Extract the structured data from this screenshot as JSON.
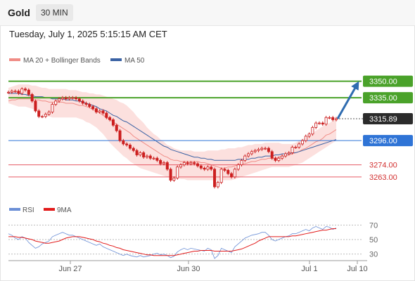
{
  "header": {
    "title": "Gold",
    "timeframe": "30 MIN"
  },
  "datetime": "Tuesday, July 1, 2025 5:15:15 AM CET",
  "colors": {
    "candle": "#cc1f1f",
    "ma20": "#f08c86",
    "bollinger_fill": "#fbd6d3",
    "ma50": "#3a62a4",
    "resistance": "#4aa22a",
    "pivot": "#2f74d6",
    "support": "#e65a64",
    "arrow": "#2f6cb0",
    "rsi": "#6b8fd6",
    "rsi_ma": "#e21b1b"
  },
  "chart_data": [
    {
      "type": "candlestick",
      "legend": [
        {
          "label": "MA 20 + Bollinger Bands",
          "color": "#f08c86"
        },
        {
          "label": "MA 50",
          "color": "#3a62a4"
        }
      ],
      "ylim": [
        3245,
        3360
      ],
      "x_ticks": [
        "Jun 27",
        "Jun 30",
        "Jul 1",
        "Jul 10"
      ],
      "levels": [
        {
          "value": 3350.0,
          "label": "3350.00",
          "kind": "resistance"
        },
        {
          "value": 3335.0,
          "label": "3335.00",
          "kind": "resistance"
        },
        {
          "value": 3315.89,
          "label": "3315.89",
          "kind": "current"
        },
        {
          "value": 3296.0,
          "label": "3296.00",
          "kind": "pivot"
        },
        {
          "value": 3274.0,
          "label": "3274.00",
          "kind": "support"
        },
        {
          "value": 3263.0,
          "label": "3263.00",
          "kind": "support"
        }
      ],
      "close": [
        3340,
        3341,
        3341,
        3339,
        3343,
        3342,
        3338,
        3332,
        3323,
        3318,
        3318,
        3320,
        3322,
        3329,
        3332,
        3334,
        3335,
        3334,
        3335,
        3335,
        3334,
        3332,
        3330,
        3329,
        3327,
        3325,
        3322,
        3323,
        3321,
        3317,
        3315,
        3310,
        3305,
        3296,
        3293,
        3292,
        3289,
        3287,
        3283,
        3285,
        3281,
        3282,
        3280,
        3280,
        3278,
        3275,
        3276,
        3270,
        3260,
        3262,
        3272,
        3274,
        3276,
        3275,
        3276,
        3275,
        3273,
        3271,
        3270,
        3272,
        3270,
        3254,
        3258,
        3270,
        3269,
        3266,
        3263,
        3270,
        3274,
        3278,
        3282,
        3284,
        3286,
        3287,
        3288,
        3289,
        3289,
        3286,
        3280,
        3278,
        3280,
        3282,
        3284,
        3285,
        3290,
        3290,
        3293,
        3296,
        3300,
        3302,
        3308,
        3312,
        3312,
        3311,
        3317,
        3317,
        3315,
        3316
      ],
      "ma20": [
        3332,
        3333,
        3333,
        3334,
        3334,
        3334,
        3334,
        3334,
        3333,
        3333,
        3332,
        3332,
        3331,
        3331,
        3331,
        3331,
        3331,
        3330,
        3330,
        3330,
        3329,
        3328,
        3328,
        3327,
        3326,
        3324,
        3323,
        3321,
        3319,
        3317,
        3315,
        3313,
        3311,
        3309,
        3307,
        3305,
        3303,
        3300,
        3298,
        3296,
        3294,
        3292,
        3290,
        3288,
        3286,
        3284,
        3282,
        3281,
        3279,
        3278,
        3278,
        3277,
        3277,
        3277,
        3277,
        3277,
        3277,
        3276,
        3276,
        3275,
        3274,
        3273,
        3272,
        3271,
        3271,
        3272,
        3272,
        3273,
        3274,
        3275,
        3275,
        3276,
        3277,
        3277,
        3278,
        3279,
        3279,
        3280,
        3280,
        3280,
        3281,
        3282,
        3282,
        3283,
        3284,
        3285,
        3286,
        3288,
        3289,
        3291,
        3293,
        3295,
        3296,
        3298,
        3301,
        3302,
        3304,
        3306
      ],
      "ma50": [
        3339,
        3339,
        3339,
        3339,
        3338,
        3338,
        3337,
        3337,
        3336,
        3336,
        3336,
        3335,
        3335,
        3334,
        3334,
        3334,
        3334,
        3333,
        3333,
        3333,
        3332,
        3332,
        3331,
        3330,
        3329,
        3328,
        3327,
        3325,
        3324,
        3323,
        3321,
        3319,
        3318,
        3316,
        3314,
        3313,
        3311,
        3309,
        3307,
        3305,
        3303,
        3301,
        3299,
        3297,
        3295,
        3293,
        3291,
        3290,
        3288,
        3287,
        3286,
        3285,
        3284,
        3283,
        3282,
        3281,
        3281,
        3280,
        3280,
        3279,
        3279,
        3278,
        3278,
        3278,
        3278,
        3278,
        3278,
        3278,
        3279,
        3279,
        3279,
        3279,
        3280,
        3280,
        3281,
        3281,
        3282,
        3282,
        3282,
        3283,
        3283,
        3284,
        3284,
        3284,
        3285,
        3285,
        3286,
        3287,
        3288,
        3289,
        3290,
        3291,
        3292,
        3293,
        3294,
        3295,
        3296,
        3297
      ],
      "bb_upper": [
        3344,
        3345,
        3346,
        3347,
        3347,
        3347,
        3347,
        3346,
        3346,
        3345,
        3344,
        3344,
        3343,
        3343,
        3343,
        3343,
        3343,
        3343,
        3342,
        3342,
        3342,
        3341,
        3340,
        3340,
        3339,
        3339,
        3338,
        3338,
        3337,
        3336,
        3335,
        3334,
        3333,
        3331,
        3330,
        3328,
        3325,
        3322,
        3318,
        3315,
        3312,
        3308,
        3305,
        3302,
        3300,
        3297,
        3295,
        3292,
        3291,
        3289,
        3288,
        3287,
        3287,
        3287,
        3287,
        3286,
        3286,
        3286,
        3286,
        3287,
        3287,
        3287,
        3287,
        3288,
        3288,
        3289,
        3289,
        3289,
        3290,
        3290,
        3291,
        3292,
        3292,
        3293,
        3293,
        3293,
        3294,
        3294,
        3294,
        3294,
        3294,
        3293,
        3293,
        3293,
        3293,
        3294,
        3296,
        3297,
        3299,
        3301,
        3303,
        3305,
        3307,
        3309,
        3311,
        3312,
        3314,
        3315
      ],
      "bb_lower": [
        3330,
        3329,
        3328,
        3327,
        3327,
        3327,
        3326,
        3325,
        3324,
        3322,
        3320,
        3318,
        3318,
        3317,
        3317,
        3317,
        3317,
        3317,
        3317,
        3317,
        3317,
        3316,
        3315,
        3313,
        3312,
        3310,
        3308,
        3305,
        3302,
        3298,
        3294,
        3291,
        3288,
        3285,
        3282,
        3280,
        3277,
        3275,
        3273,
        3271,
        3270,
        3269,
        3268,
        3267,
        3266,
        3265,
        3264,
        3263,
        3263,
        3262,
        3262,
        3261,
        3261,
        3260,
        3260,
        3260,
        3260,
        3260,
        3260,
        3260,
        3260,
        3260,
        3260,
        3260,
        3260,
        3260,
        3260,
        3261,
        3262,
        3263,
        3264,
        3265,
        3266,
        3267,
        3268,
        3269,
        3270,
        3271,
        3272,
        3272,
        3272,
        3272,
        3272,
        3272,
        3273,
        3274,
        3275,
        3276,
        3278,
        3280,
        3282,
        3284,
        3286,
        3288,
        3290,
        3292,
        3294,
        3296
      ]
    },
    {
      "type": "line",
      "legend": [
        {
          "label": "RSI",
          "color": "#6b8fd6"
        },
        {
          "label": "9MA",
          "color": "#e21b1b"
        }
      ],
      "ylim": [
        20,
        80
      ],
      "y_ticks": [
        "70",
        "50",
        "30"
      ],
      "rsi": [
        58,
        56,
        52,
        50,
        54,
        52,
        46,
        42,
        38,
        40,
        44,
        46,
        48,
        54,
        56,
        58,
        60,
        58,
        56,
        56,
        54,
        52,
        50,
        48,
        46,
        44,
        42,
        44,
        40,
        38,
        36,
        34,
        32,
        30,
        28,
        30,
        28,
        27,
        26,
        28,
        26,
        27,
        28,
        30,
        31,
        29,
        30,
        28,
        25,
        27,
        33,
        36,
        38,
        36,
        38,
        37,
        36,
        35,
        34,
        38,
        36,
        24,
        28,
        38,
        36,
        34,
        32,
        40,
        44,
        48,
        52,
        54,
        56,
        57,
        58,
        60,
        60,
        56,
        50,
        48,
        50,
        52,
        54,
        55,
        58,
        58,
        60,
        62,
        64,
        62,
        66,
        68,
        66,
        64,
        68,
        67,
        64,
        66
      ],
      "rsi_ma": [
        54,
        54,
        54,
        53,
        53,
        52,
        51,
        50,
        48,
        47,
        46,
        45,
        45,
        46,
        47,
        48,
        50,
        52,
        53,
        54,
        54,
        54,
        53,
        52,
        51,
        50,
        48,
        47,
        45,
        44,
        42,
        41,
        39,
        38,
        36,
        35,
        34,
        33,
        32,
        31,
        30,
        29,
        29,
        28,
        28,
        28,
        28,
        28,
        28,
        28,
        29,
        30,
        31,
        32,
        33,
        34,
        34,
        35,
        35,
        35,
        35,
        34,
        34,
        34,
        34,
        34,
        34,
        35,
        36,
        37,
        39,
        41,
        43,
        45,
        48,
        50,
        52,
        54,
        54,
        54,
        54,
        54,
        54,
        54,
        55,
        55,
        56,
        57,
        58,
        59,
        60,
        61,
        62,
        63,
        63,
        64,
        65,
        65
      ]
    }
  ]
}
